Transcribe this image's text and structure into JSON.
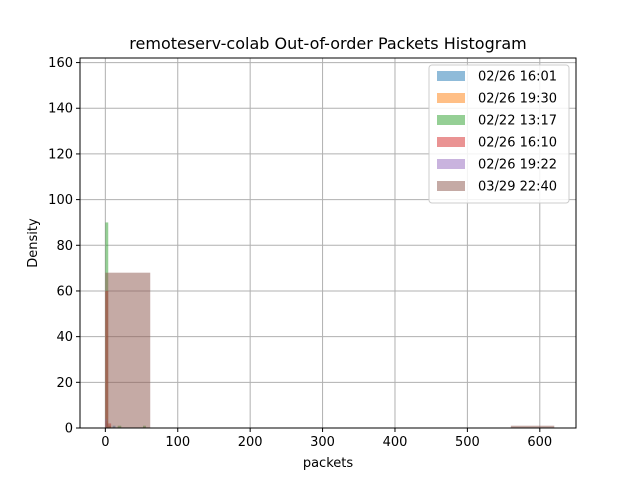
{
  "chart_data": {
    "type": "histogram",
    "title": "remoteserv-colab Out-of-order Packets Histogram",
    "xlabel": "packets",
    "ylabel": "Density",
    "xlim": [
      -35,
      650
    ],
    "ylim": [
      0,
      162
    ],
    "xticks": [
      0,
      100,
      200,
      300,
      400,
      500,
      600
    ],
    "yticks": [
      0,
      20,
      40,
      60,
      80,
      100,
      120,
      140,
      160
    ],
    "grid": true,
    "legend_position": "top-right",
    "series": [
      {
        "name": "02/26 16:01",
        "color": "#1f77b4",
        "bins": [
          {
            "x0": 0,
            "x1": 4,
            "value": 2
          },
          {
            "x0": 10,
            "x1": 14,
            "value": 1
          }
        ]
      },
      {
        "name": "02/26 19:30",
        "color": "#ff7f0e",
        "bins": [
          {
            "x0": 0,
            "x1": 3,
            "value": 3
          }
        ]
      },
      {
        "name": "02/22 13:17",
        "color": "#2ca02c",
        "bins": [
          {
            "x0": 0,
            "x1": 4,
            "value": 90
          },
          {
            "x0": 4,
            "x1": 8,
            "value": 1
          },
          {
            "x0": 17,
            "x1": 22,
            "value": 1
          },
          {
            "x0": 52,
            "x1": 56,
            "value": 1
          }
        ]
      },
      {
        "name": "02/26 16:10",
        "color": "#d62728",
        "bins": [
          {
            "x0": 0,
            "x1": 4,
            "value": 60
          },
          {
            "x0": 4,
            "x1": 8,
            "value": 2
          }
        ]
      },
      {
        "name": "02/26 19:22",
        "color": "#9467bd",
        "bins": [
          {
            "x0": 0,
            "x1": 2,
            "value": 4
          }
        ]
      },
      {
        "name": "03/29 22:40",
        "color": "#8c564b",
        "bins": [
          {
            "x0": 0,
            "x1": 62,
            "value": 68
          },
          {
            "x0": 560,
            "x1": 620,
            "value": 1
          }
        ]
      }
    ]
  }
}
